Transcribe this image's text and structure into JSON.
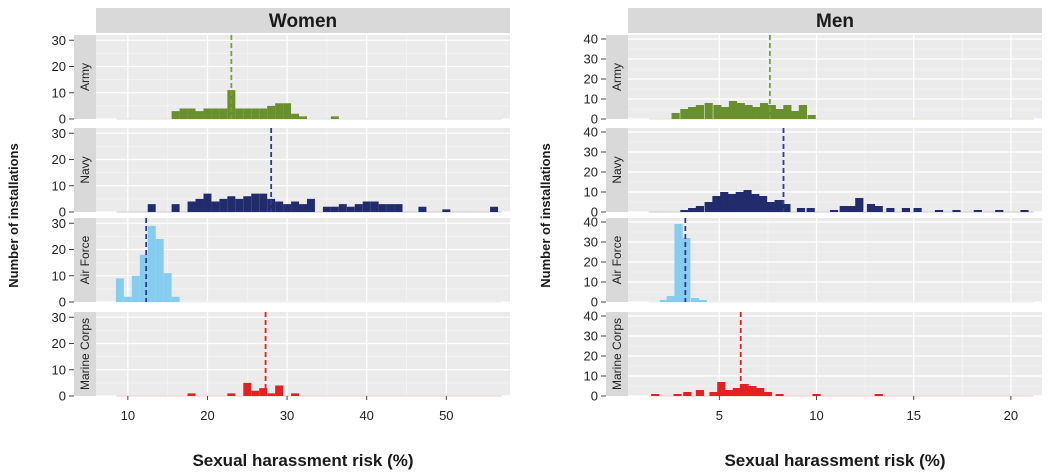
{
  "colors": {
    "panel_bg": "#ebebeb",
    "strip_bg": "#d9d9d9",
    "grid_major": "#ffffff",
    "grid_minor": "#f5f5f5",
    "text": "#1a1a1a",
    "axis_text": "#222222"
  },
  "chart_data": [
    {
      "type": "bar",
      "title": "Women",
      "xlabel": "Sexual harassment risk (%)",
      "ylabel": "Number of installations",
      "xlim": [
        6,
        58
      ],
      "ylim": [
        0,
        32
      ],
      "x_ticks": [
        10,
        20,
        30,
        40,
        50
      ],
      "y_ticks": [
        0,
        10,
        20,
        30
      ],
      "bin_width": 1,
      "grid": true,
      "facets": [
        {
          "name": "Army",
          "color": "#6a8f2f",
          "line_color": "#7a9e3a",
          "mean": 23,
          "bins": [
            [
              16,
              3
            ],
            [
              17,
              4
            ],
            [
              18,
              4
            ],
            [
              19,
              3
            ],
            [
              20,
              4
            ],
            [
              21,
              4
            ],
            [
              22,
              4
            ],
            [
              23,
              11
            ],
            [
              24,
              4
            ],
            [
              25,
              4
            ],
            [
              26,
              4
            ],
            [
              27,
              4
            ],
            [
              28,
              5
            ],
            [
              29,
              6
            ],
            [
              30,
              6
            ],
            [
              31,
              2
            ],
            [
              32,
              1
            ],
            [
              36,
              1
            ]
          ]
        },
        {
          "name": "Navy",
          "color": "#222b6b",
          "line_color": "#2e3a8c",
          "mean": 28,
          "bins": [
            [
              13,
              3
            ],
            [
              14,
              0
            ],
            [
              15,
              0
            ],
            [
              16,
              3
            ],
            [
              17,
              0
            ],
            [
              18,
              4
            ],
            [
              19,
              5
            ],
            [
              20,
              7
            ],
            [
              21,
              4
            ],
            [
              22,
              5
            ],
            [
              23,
              6
            ],
            [
              24,
              5
            ],
            [
              25,
              6
            ],
            [
              26,
              7
            ],
            [
              27,
              7
            ],
            [
              28,
              5
            ],
            [
              29,
              4
            ],
            [
              30,
              3
            ],
            [
              31,
              4
            ],
            [
              32,
              3
            ],
            [
              33,
              5
            ],
            [
              35,
              2
            ],
            [
              36,
              2
            ],
            [
              37,
              3
            ],
            [
              38,
              2
            ],
            [
              39,
              3
            ],
            [
              40,
              4
            ],
            [
              41,
              4
            ],
            [
              42,
              3
            ],
            [
              43,
              3
            ],
            [
              44,
              3
            ],
            [
              47,
              2
            ],
            [
              50,
              1
            ],
            [
              56,
              2
            ]
          ]
        },
        {
          "name": "Air Force",
          "color": "#86ccee",
          "line_color": "#2e3a8c",
          "mean": 12.3,
          "bins": [
            [
              9,
              9
            ],
            [
              10,
              2
            ],
            [
              11,
              10
            ],
            [
              12,
              18
            ],
            [
              13,
              29
            ],
            [
              14,
              24
            ],
            [
              15,
              11
            ],
            [
              16,
              2
            ]
          ]
        },
        {
          "name": "Marine Corps",
          "color": "#e02222",
          "line_color": "#e02222",
          "mean": 27.3,
          "bins": [
            [
              18,
              1
            ],
            [
              23,
              1
            ],
            [
              25,
              5
            ],
            [
              26,
              2
            ],
            [
              27,
              3
            ],
            [
              28,
              1
            ],
            [
              29,
              4
            ],
            [
              31,
              1
            ]
          ]
        }
      ]
    },
    {
      "type": "bar",
      "title": "Men",
      "xlabel": "Sexual harassment risk (%)",
      "ylabel": "Number of installations",
      "xlim": [
        0.3,
        21.6
      ],
      "ylim": [
        0,
        42
      ],
      "x_ticks": [
        5,
        10,
        15,
        20
      ],
      "y_ticks": [
        0,
        10,
        20,
        30,
        40
      ],
      "bin_width": 0.42,
      "grid": true,
      "facets": [
        {
          "name": "Army",
          "color": "#6a8f2f",
          "line_color": "#7a9e3a",
          "mean": 7.6,
          "bins": [
            [
              2.75,
              3
            ],
            [
              3.2,
              5
            ],
            [
              3.6,
              6
            ],
            [
              4,
              7
            ],
            [
              4.45,
              8
            ],
            [
              4.9,
              7
            ],
            [
              5.3,
              6
            ],
            [
              5.7,
              9
            ],
            [
              6.1,
              8
            ],
            [
              6.5,
              7
            ],
            [
              6.9,
              6
            ],
            [
              7.3,
              8
            ],
            [
              7.7,
              7
            ],
            [
              8.1,
              5
            ],
            [
              8.5,
              7
            ],
            [
              8.9,
              4
            ],
            [
              9.3,
              7
            ],
            [
              9.75,
              2
            ]
          ]
        },
        {
          "name": "Navy",
          "color": "#222b6b",
          "line_color": "#2e3a8c",
          "mean": 8.3,
          "bins": [
            [
              3.2,
              1
            ],
            [
              3.6,
              2
            ],
            [
              4,
              3
            ],
            [
              4.45,
              5
            ],
            [
              4.85,
              8
            ],
            [
              5.25,
              10
            ],
            [
              5.65,
              9
            ],
            [
              6.05,
              10
            ],
            [
              6.45,
              11
            ],
            [
              6.85,
              9
            ],
            [
              7.25,
              8
            ],
            [
              7.65,
              5
            ],
            [
              8.05,
              6
            ],
            [
              8.45,
              4
            ],
            [
              9.2,
              2
            ],
            [
              9.7,
              2
            ],
            [
              10.9,
              1
            ],
            [
              11.4,
              3
            ],
            [
              11.8,
              3
            ],
            [
              12.2,
              7
            ],
            [
              12.8,
              4
            ],
            [
              13.2,
              3
            ],
            [
              13.8,
              2
            ],
            [
              14.6,
              2
            ],
            [
              15.2,
              2
            ],
            [
              16.3,
              1
            ],
            [
              17.2,
              1
            ],
            [
              18.3,
              1
            ],
            [
              19.4,
              1
            ],
            [
              20.7,
              1
            ]
          ]
        },
        {
          "name": "Air Force",
          "color": "#86ccee",
          "line_color": "#2e3a8c",
          "mean": 3.25,
          "bins": [
            [
              2.15,
              1
            ],
            [
              2.5,
              3
            ],
            [
              2.9,
              39
            ],
            [
              3.3,
              32
            ],
            [
              3.75,
              2
            ],
            [
              4.15,
              1
            ]
          ]
        },
        {
          "name": "Marine Corps",
          "color": "#e02222",
          "line_color": "#e02222",
          "mean": 6.1,
          "bins": [
            [
              1.7,
              1
            ],
            [
              2.85,
              1
            ],
            [
              3.35,
              2
            ],
            [
              4,
              3
            ],
            [
              4.7,
              2
            ],
            [
              5.1,
              7
            ],
            [
              5.5,
              3
            ],
            [
              5.9,
              4
            ],
            [
              6.3,
              6
            ],
            [
              6.7,
              5
            ],
            [
              7.1,
              4
            ],
            [
              7.5,
              2
            ],
            [
              8.1,
              1
            ],
            [
              10,
              1
            ],
            [
              13.2,
              1
            ]
          ]
        }
      ]
    }
  ]
}
